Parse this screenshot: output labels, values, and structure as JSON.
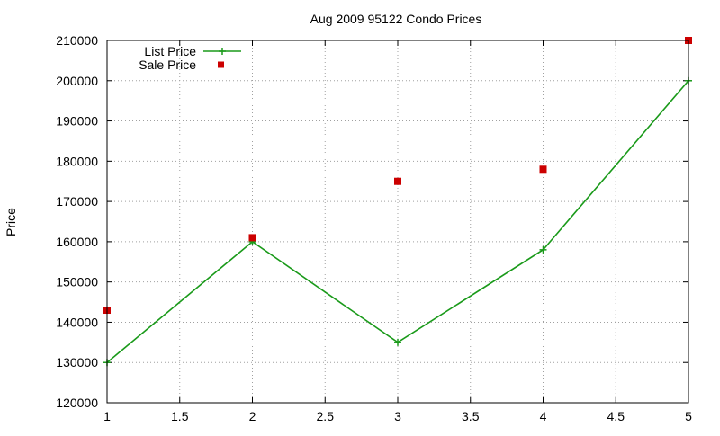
{
  "chart_data": {
    "type": "line",
    "title": "Aug 2009 95122 Condo Prices",
    "xlabel": "",
    "ylabel": "Price",
    "xlim": [
      1,
      5
    ],
    "ylim": [
      120000,
      210000
    ],
    "x_ticks": [
      1,
      1.5,
      2,
      2.5,
      3,
      3.5,
      4,
      4.5,
      5
    ],
    "x_tick_labels": [
      "1",
      "1.5",
      "2",
      "2.5",
      "3",
      "3.5",
      "4",
      "4.5",
      "5"
    ],
    "y_ticks": [
      120000,
      130000,
      140000,
      150000,
      160000,
      170000,
      180000,
      190000,
      200000,
      210000
    ],
    "y_tick_labels": [
      "120000",
      "130000",
      "140000",
      "150000",
      "160000",
      "170000",
      "180000",
      "190000",
      "200000",
      "210000"
    ],
    "grid": true,
    "legend_position": "top-left",
    "series": [
      {
        "name": "List Price",
        "style": "linespoints",
        "marker": "plus",
        "color": "#1a9a1a",
        "x": [
          1,
          2,
          3,
          4,
          5
        ],
        "y": [
          130000,
          160000,
          135000,
          158000,
          200000
        ]
      },
      {
        "name": "Sale Price",
        "style": "points",
        "marker": "square",
        "color": "#cc0000",
        "x": [
          1,
          2,
          3,
          4,
          5
        ],
        "y": [
          143000,
          161000,
          175000,
          178000,
          210000
        ]
      }
    ]
  }
}
